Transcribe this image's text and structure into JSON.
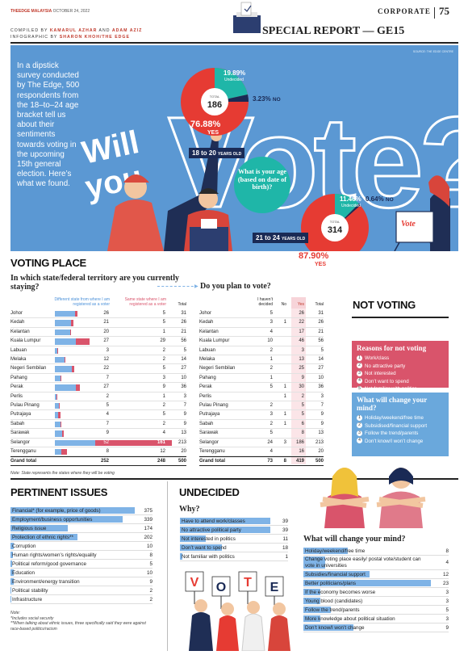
{
  "masthead": {
    "brand": "THEEDGE MALAYSIA",
    "date": "OCTOBER 24, 2022",
    "section": "CORPORATE",
    "page": "75",
    "credits_line1_prefix": "COMPILED BY ",
    "credits_line1_names": "KAMARUL AZHAR",
    "credits_line1_and": " AND ",
    "credits_line1_names2": "ADAM AZIZ",
    "credits_line2_prefix": "INFOGRAPHIC BY ",
    "credits_line2_names": "SHARON KHOH/THE EDGE",
    "special_report": "SPECIAL REPORT — GE15"
  },
  "hero": {
    "source_note": "SOURCE: THE EDGE CENTRE",
    "intro": "In a dipstick survey conducted by The Edge, 500 respondents from the 18–to–24 age bracket tell us about their sentiments towards voting in the upcoming 15th general election. Here’s what we found.",
    "headline_will": "Will",
    "headline_you": "you",
    "headline_vote": "Vote?",
    "question": "What is your age (based on date of birth)?",
    "group1": {
      "label": "18 to 20",
      "label_suffix": "YEARS OLD",
      "total_label": "TOTAL",
      "total": "186",
      "yes_pct": "76.88%",
      "yes_label": "YES",
      "undecided_pct": "19.89%",
      "undecided_label": "Undecided",
      "no_pct": "3.23%",
      "no_label": "NO"
    },
    "group2": {
      "label": "21 to 24",
      "label_suffix": "YEARS OLD",
      "total_label": "TOTAL",
      "total": "314",
      "yes_pct": "87.90%",
      "yes_label": "YES",
      "undecided_pct": "11.46%",
      "undecided_label": "Undecided",
      "no_pct": "0.64%",
      "no_label": "NO"
    },
    "ballot_word": "Vote"
  },
  "colors": {
    "red": "#e63b33",
    "teal": "#1fb6a8",
    "blue": "#6aa8dc",
    "darkblue": "#1a2a55",
    "pink": "#d9546b",
    "lightblue": "#7fb3e6"
  },
  "voting_place": {
    "title": "VOTING PLACE",
    "question1": "In which state/federal territory are you currently staying?",
    "question2": "Do you plan to vote?",
    "col_diff": "Different state from where I am registered as a voter",
    "col_same": "Same state where I am registered as a voter",
    "col_total": "Total",
    "col_undecided": "I haven’t decided",
    "col_no": "No",
    "col_yes": "Yes",
    "col_total2": "Total",
    "rows": [
      {
        "state": "Johor",
        "diff": "26",
        "same": "5",
        "total": "31",
        "und": "5",
        "no": "",
        "yes": "26",
        "t2": "31"
      },
      {
        "state": "Kedah",
        "diff": "21",
        "same": "5",
        "total": "26",
        "und": "3",
        "no": "1",
        "yes": "22",
        "t2": "26"
      },
      {
        "state": "Kelantan",
        "diff": "20",
        "same": "1",
        "total": "21",
        "und": "4",
        "no": "",
        "yes": "17",
        "t2": "21"
      },
      {
        "state": "Kuala Lumpur",
        "diff": "27",
        "same": "29",
        "total": "56",
        "und": "10",
        "no": "",
        "yes": "46",
        "t2": "56"
      },
      {
        "state": "Labuan",
        "diff": "3",
        "same": "2",
        "total": "5",
        "und": "2",
        "no": "",
        "yes": "3",
        "t2": "5"
      },
      {
        "state": "Melaka",
        "diff": "12",
        "same": "2",
        "total": "14",
        "und": "1",
        "no": "",
        "yes": "13",
        "t2": "14"
      },
      {
        "state": "Negeri Sembilan",
        "diff": "22",
        "same": "5",
        "total": "27",
        "und": "2",
        "no": "",
        "yes": "25",
        "t2": "27"
      },
      {
        "state": "Pahang",
        "diff": "7",
        "same": "3",
        "total": "10",
        "und": "1",
        "no": "",
        "yes": "9",
        "t2": "10"
      },
      {
        "state": "Perak",
        "diff": "27",
        "same": "9",
        "total": "36",
        "und": "5",
        "no": "1",
        "yes": "30",
        "t2": "36"
      },
      {
        "state": "Perlis",
        "diff": "2",
        "same": "1",
        "total": "3",
        "und": "",
        "no": "1",
        "yes": "2",
        "t2": "3"
      },
      {
        "state": "Pulau Pinang",
        "diff": "5",
        "same": "2",
        "total": "7",
        "und": "2",
        "no": "",
        "yes": "5",
        "t2": "7"
      },
      {
        "state": "Putrajaya",
        "diff": "4",
        "same": "5",
        "total": "9",
        "und": "3",
        "no": "1",
        "yes": "5",
        "t2": "9"
      },
      {
        "state": "Sabah",
        "diff": "7",
        "same": "2",
        "total": "9",
        "und": "2",
        "no": "1",
        "yes": "6",
        "t2": "9"
      },
      {
        "state": "Sarawak",
        "diff": "9",
        "same": "4",
        "total": "13",
        "und": "5",
        "no": "",
        "yes": "8",
        "t2": "13"
      },
      {
        "state": "Selangor",
        "diff": "52",
        "same": "161",
        "total": "213",
        "und": "24",
        "no": "3",
        "yes": "186",
        "t2": "213"
      },
      {
        "state": "Terengganu",
        "diff": "8",
        "same": "12",
        "total": "20",
        "und": "4",
        "no": "",
        "yes": "16",
        "t2": "20"
      }
    ],
    "grand": {
      "state": "Grand total",
      "diff": "252",
      "same": "248",
      "total": "500",
      "und": "73",
      "no": "8",
      "yes": "419",
      "t2": "500"
    },
    "note": "Note: State represents the states where they will be voting"
  },
  "not_voting": {
    "title": "NOT VOTING",
    "reasons_title": "Reasons for not voting",
    "reasons": [
      "Work/class",
      "No attractive party",
      "Not interested",
      "Don’t want to spend",
      "Not familiar with politics"
    ],
    "change_title": "What will change your mind?",
    "changes": [
      "Holiday/weekend/free time",
      "Subsidised/financial support",
      "Follow the trend/parents",
      "Don’t know/I won’t change"
    ]
  },
  "issues": {
    "title": "PERTINENT ISSUES",
    "rows": [
      {
        "label": "Financial* (for example, price of goods)",
        "value": "375",
        "v": 375
      },
      {
        "label": "Employment/business opportunities",
        "value": "339",
        "v": 339
      },
      {
        "label": "Religious issue",
        "value": "174",
        "v": 174
      },
      {
        "label": "Protection of ethnic rights**",
        "value": "202",
        "v": 202
      },
      {
        "label": "Corruption",
        "value": "10",
        "v": 10
      },
      {
        "label": "Human rights/women’s rights/equality",
        "value": "8",
        "v": 8
      },
      {
        "label": "Political reform/good governance",
        "value": "5",
        "v": 5
      },
      {
        "label": "Education",
        "value": "10",
        "v": 10
      },
      {
        "label": "Environment/energy transition",
        "value": "9",
        "v": 9
      },
      {
        "label": "Political stability",
        "value": "2",
        "v": 2
      },
      {
        "label": "Infrastructure",
        "value": "2",
        "v": 2
      }
    ],
    "note1": "Note:",
    "note2": "*Includes social security",
    "note3": "**When talking about ethnic issues, three specifically said they were against race-based politics/racism"
  },
  "undecided": {
    "title": "UNDECIDED",
    "why": "Why?",
    "why_rows": [
      {
        "label": "Have to attend work/classes",
        "value": "39",
        "v": 39
      },
      {
        "label": "No attractive political party",
        "value": "39",
        "v": 39
      },
      {
        "label": "Not interested in politics",
        "value": "11",
        "v": 11
      },
      {
        "label": "Don’t want to spend",
        "value": "18",
        "v": 18
      },
      {
        "label": "Not familiar with politics",
        "value": "1",
        "v": 1
      }
    ],
    "change_title": "What will change your mind?",
    "change_rows": [
      {
        "label": "Holiday/weekend/free time",
        "value": "8",
        "v": 8
      },
      {
        "label": "Change voting place easily/ postal vote/student can vote in universities",
        "value": "4",
        "v": 4
      },
      {
        "label": "Subsidies/financial support",
        "value": "12",
        "v": 12
      },
      {
        "label": "Better politicians/plans",
        "value": "23",
        "v": 23
      },
      {
        "label": "If the economy becomes worse",
        "value": "3",
        "v": 3
      },
      {
        "label": "Young blood (candidates)",
        "value": "3",
        "v": 3
      },
      {
        "label": "Follow the trend/parents",
        "value": "5",
        "v": 5
      },
      {
        "label": "More knowledge about political situation",
        "value": "3",
        "v": 3
      },
      {
        "label": "Don’t know/I won’t change",
        "value": "9",
        "v": 9
      }
    ],
    "sign_letters": [
      "V",
      "O",
      "T",
      "E"
    ]
  }
}
